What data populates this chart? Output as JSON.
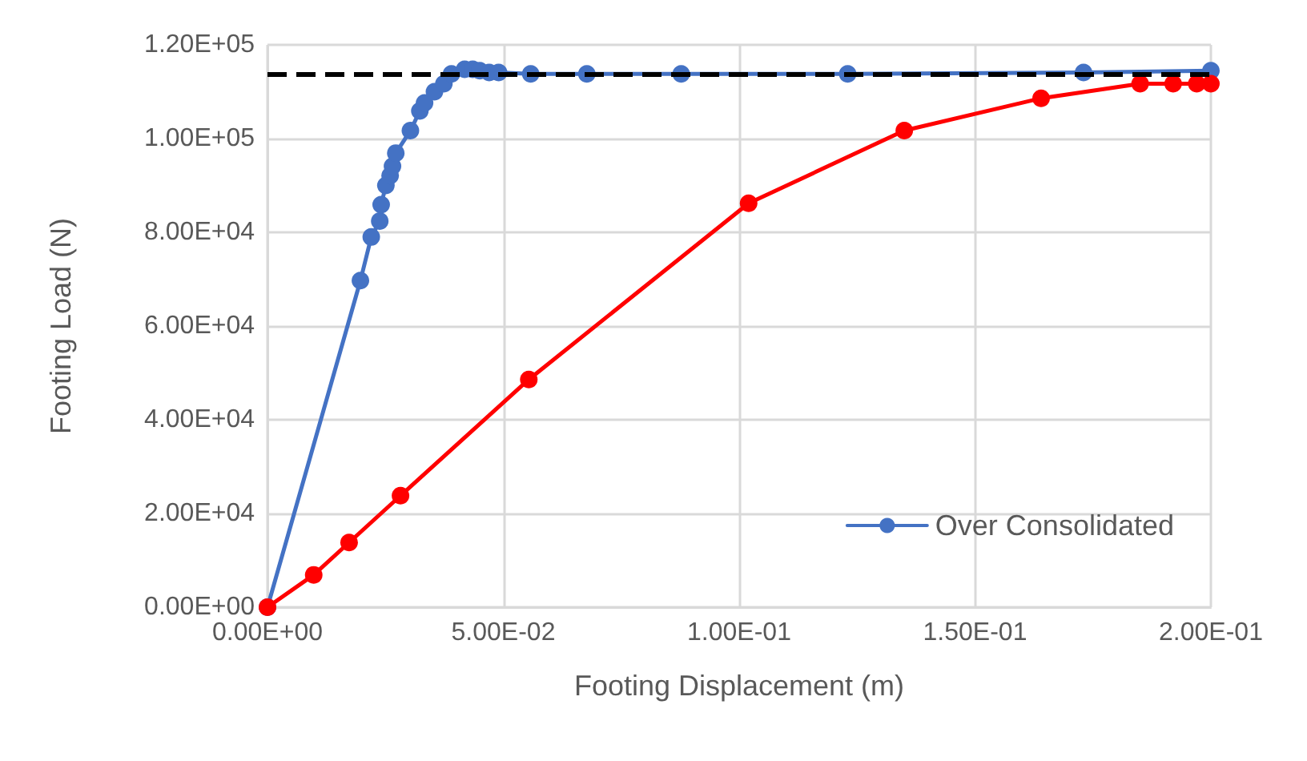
{
  "chart_data": {
    "type": "line",
    "xlabel": "Footing Displacement (m)",
    "ylabel": "Footing Load (N)",
    "xlim": [
      0,
      0.2
    ],
    "ylim": [
      0,
      120000
    ],
    "xticks": [
      {
        "value": 0,
        "label": "0.00E+00"
      },
      {
        "value": 0.05,
        "label": "5.00E-02"
      },
      {
        "value": 0.1,
        "label": "1.00E-01"
      },
      {
        "value": 0.15,
        "label": "1.50E-01"
      },
      {
        "value": 0.2,
        "label": "2.00E-01"
      }
    ],
    "yticks": [
      {
        "value": 0,
        "label": "0.00E+00"
      },
      {
        "value": 20000,
        "label": "2.00E+04"
      },
      {
        "value": 40000,
        "label": "4.00E+04"
      },
      {
        "value": 60000,
        "label": "6.00E+04"
      },
      {
        "value": 80000,
        "label": "8.00E+04"
      },
      {
        "value": 100000,
        "label": "1.00E+05"
      },
      {
        "value": 120000,
        "label": "1.20E+05"
      }
    ],
    "grid": true,
    "legend": "bottom right",
    "marker": "circle",
    "line_style": "solid",
    "series": [
      {
        "name": "Over Consolidated",
        "color": "#4472c4",
        "x": [
          0,
          0.0197,
          0.022,
          0.0238,
          0.0241,
          0.0251,
          0.026,
          0.0265,
          0.0272,
          0.0303,
          0.0323,
          0.0333,
          0.0354,
          0.0374,
          0.039,
          0.0418,
          0.0435,
          0.045,
          0.047,
          0.049,
          0.0558,
          0.0677,
          0.0877,
          0.123,
          0.173,
          0.2
        ],
        "values": [
          0,
          69700,
          79000,
          82400,
          85900,
          90000,
          92100,
          94100,
          96900,
          101700,
          105900,
          107600,
          110000,
          111700,
          113800,
          114800,
          114800,
          114500,
          114100,
          114100,
          113800,
          113800,
          113800,
          113800,
          114100,
          114500
        ]
      },
      {
        "color": "#ff0000",
        "x": [
          0,
          0.0098,
          0.0173,
          0.0282,
          0.0554,
          0.102,
          0.135,
          0.164,
          0.185,
          0.192,
          0.197,
          0.2
        ],
        "values": [
          0,
          6900,
          13800,
          23800,
          48600,
          86200,
          101700,
          108600,
          111700,
          111700,
          111700,
          111700
        ]
      }
    ],
    "ref_lines": [
      {
        "axis": "y",
        "value": 113800,
        "color": "#000000",
        "line_style": "dashed"
      }
    ]
  }
}
